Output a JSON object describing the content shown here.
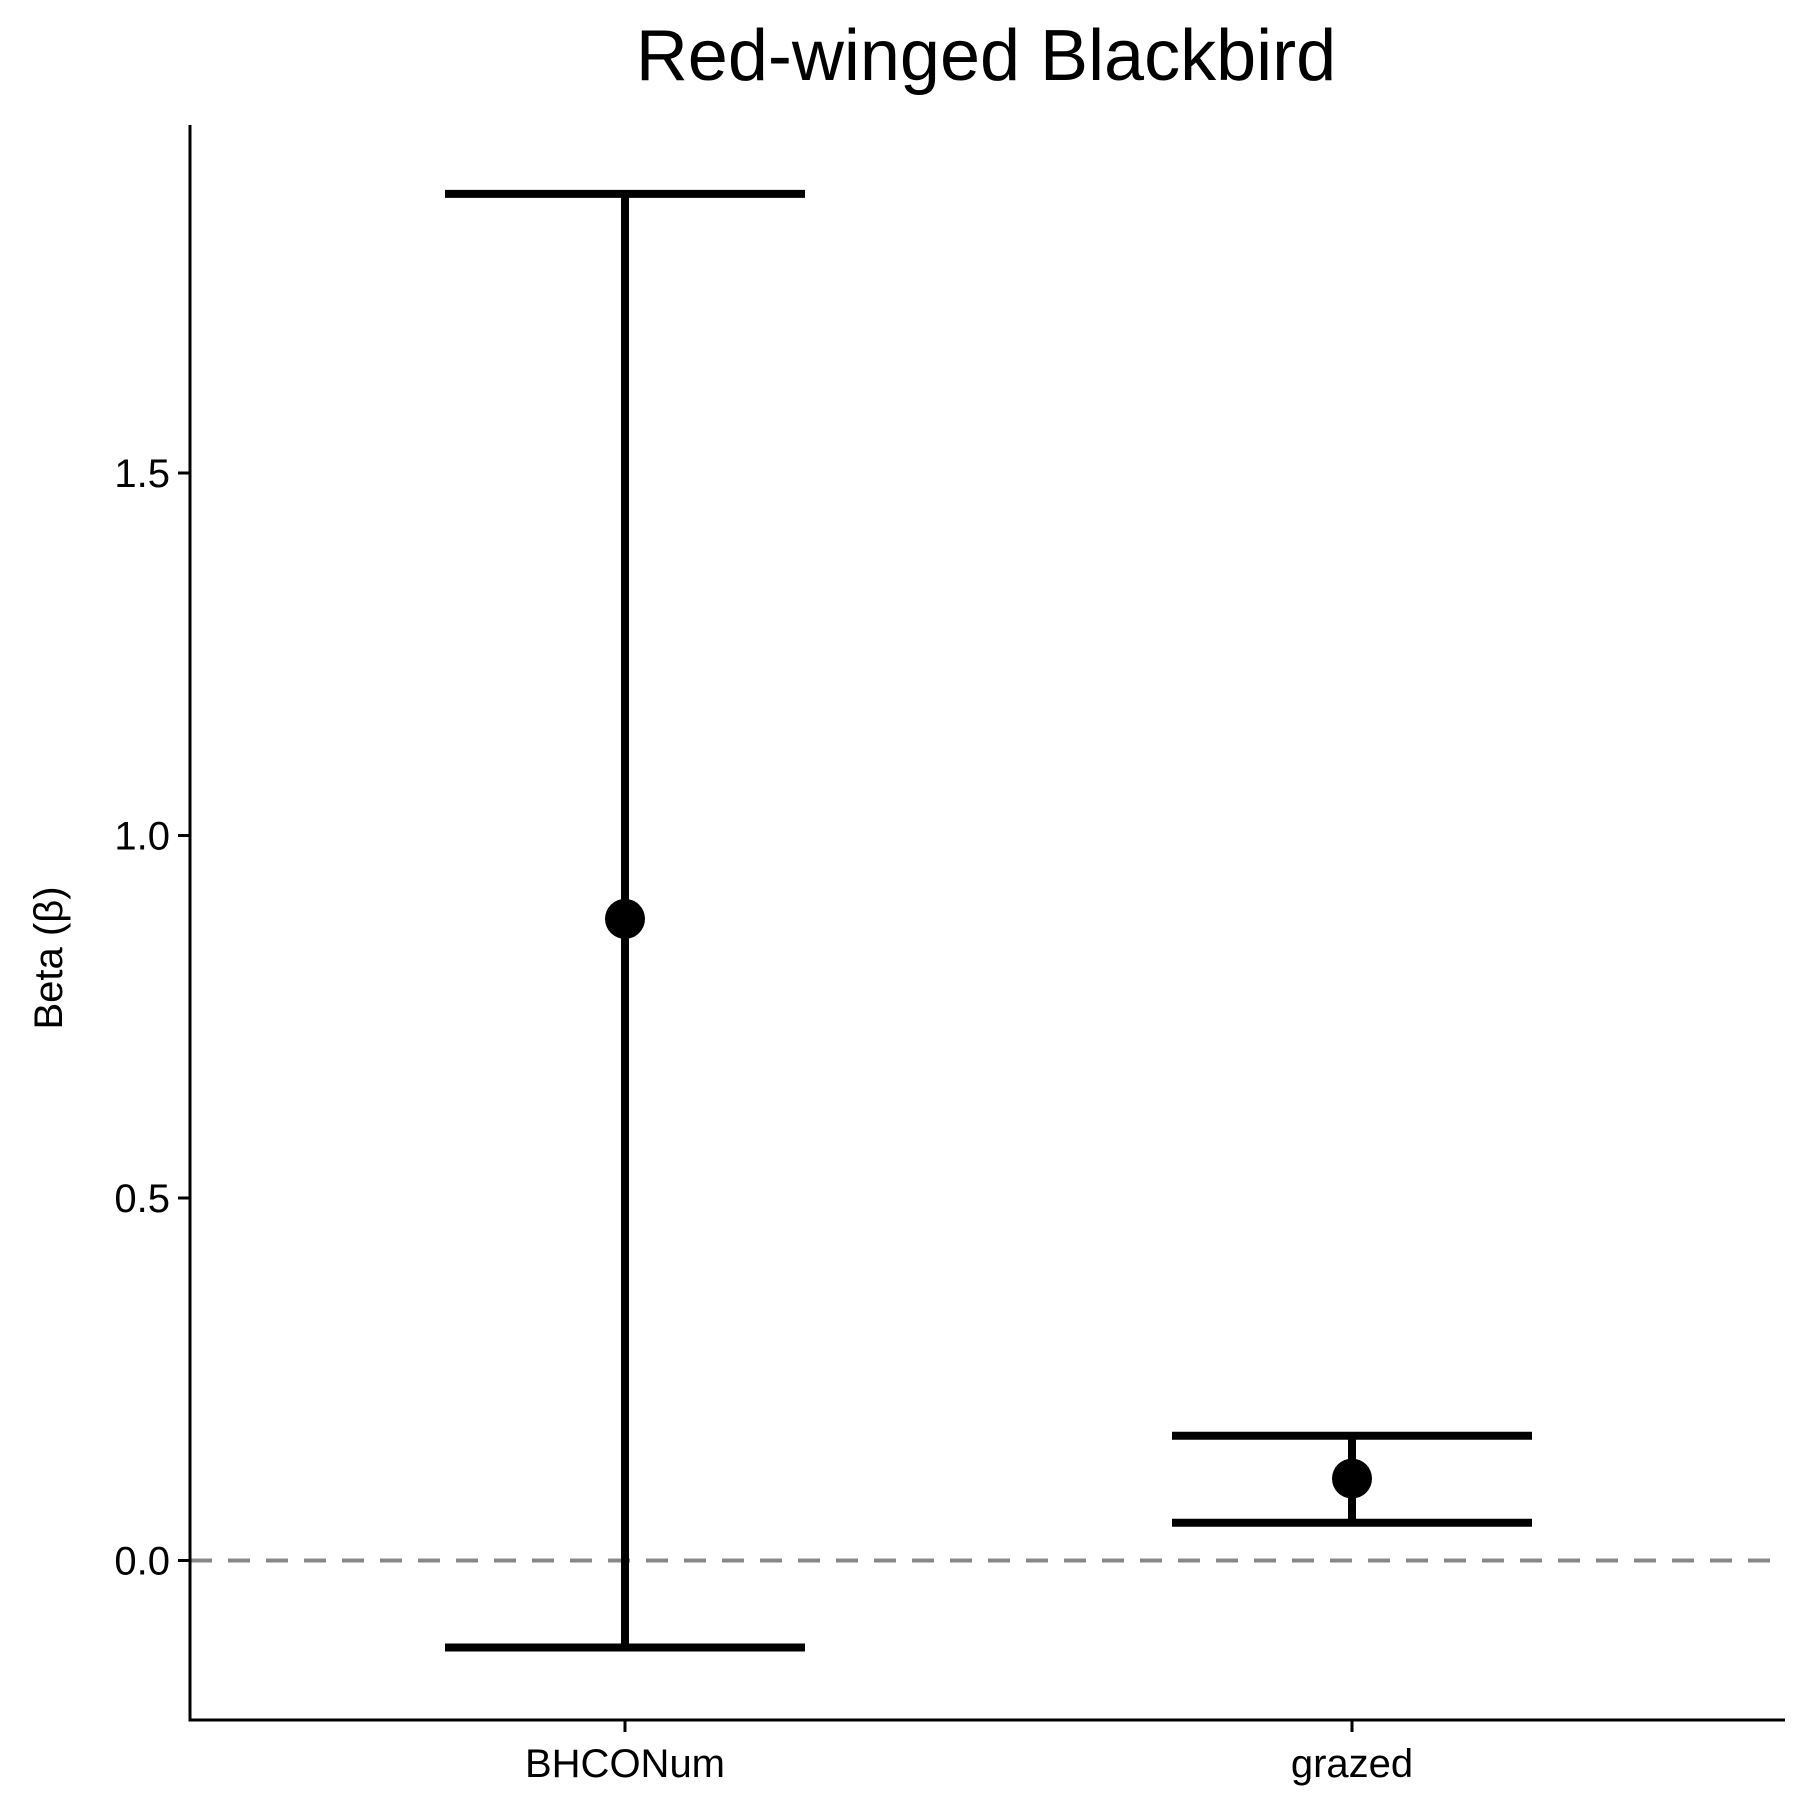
{
  "chart_data": {
    "type": "errorbar",
    "title": "Red-winged Blackbird",
    "xlabel": "",
    "ylabel": "Beta (β)",
    "categories": [
      "BHCONum",
      "grazed"
    ],
    "estimates": [
      0.885,
      0.113
    ],
    "lower": [
      -0.12,
      0.052
    ],
    "upper": [
      1.885,
      0.172
    ],
    "ylim": [
      -0.22,
      1.98
    ],
    "yticks": [
      0.0,
      0.5,
      1.0,
      1.5
    ],
    "ytick_labels": [
      "0.0",
      "0.5",
      "1.0",
      "1.5"
    ],
    "reference_line": 0,
    "grid": false,
    "colors": {
      "points": "#000000",
      "errorbars": "#000000",
      "reference_line": "#888888",
      "axes": "#000000"
    }
  }
}
